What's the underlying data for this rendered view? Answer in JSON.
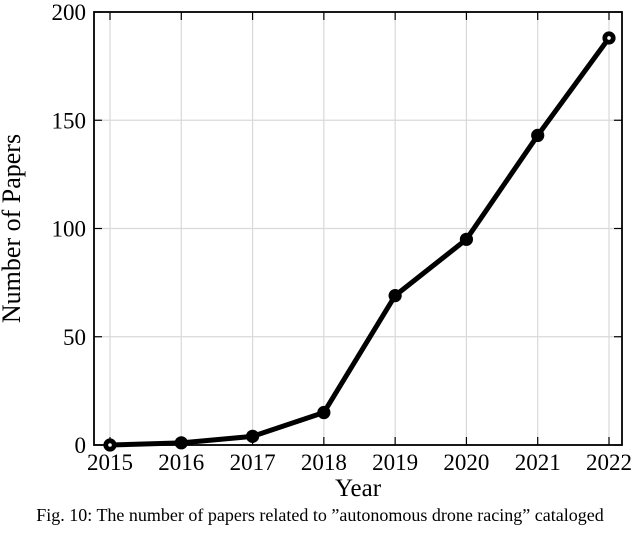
{
  "figure": {
    "caption": "Fig. 10: The number of papers related to ”autonomous drone racing” cataloged"
  },
  "chart_data": {
    "type": "line",
    "title": "",
    "x": [
      "2015",
      "2016",
      "2017",
      "2018",
      "2019",
      "2020",
      "2021",
      "2022"
    ],
    "series": [
      {
        "name": "number-of-papers",
        "values": [
          0,
          1,
          4,
          15,
          69,
          95,
          143,
          188
        ]
      }
    ],
    "xlabel": "Year",
    "ylabel": "Number of Papers",
    "ylim": [
      0,
      200
    ],
    "yticks": [
      0,
      50,
      100,
      150,
      200
    ],
    "grid": true,
    "legend": "none",
    "line_color": "#000000",
    "grid_color": "#d9d9d9",
    "frame_color": "#000000",
    "text_color": "#000000",
    "marker": "filled-circle-open-endpoints"
  }
}
